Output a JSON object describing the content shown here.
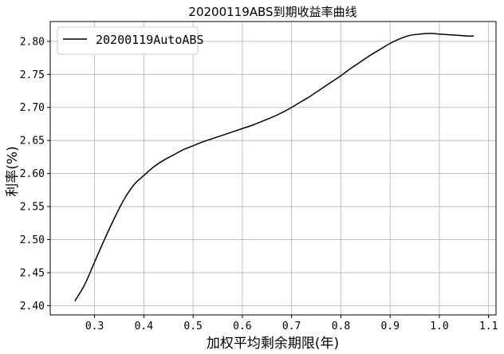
{
  "chart_data": {
    "type": "line",
    "title": "20200119ABS到期收益率曲线",
    "xlabel": "加权平均剩余期限(年)",
    "ylabel": "利率(%)",
    "xlim": [
      0.21,
      1.115
    ],
    "ylim": [
      2.386,
      2.83
    ],
    "xticks": [
      0.3,
      0.4,
      0.5,
      0.6,
      0.7,
      0.8,
      0.9,
      1.0,
      1.1
    ],
    "yticks": [
      2.4,
      2.45,
      2.5,
      2.55,
      2.6,
      2.65,
      2.7,
      2.75,
      2.8
    ],
    "grid": true,
    "legend_position": "top-left",
    "series": [
      {
        "name": "20200119AutoABS",
        "color": "#000000",
        "x": [
          0.26,
          0.28,
          0.3,
          0.32,
          0.34,
          0.36,
          0.38,
          0.4,
          0.42,
          0.44,
          0.46,
          0.48,
          0.5,
          0.52,
          0.54,
          0.56,
          0.58,
          0.6,
          0.62,
          0.64,
          0.66,
          0.68,
          0.7,
          0.72,
          0.74,
          0.76,
          0.78,
          0.8,
          0.82,
          0.84,
          0.86,
          0.88,
          0.9,
          0.92,
          0.94,
          0.96,
          0.98,
          1.0,
          1.02,
          1.04,
          1.06,
          1.07
        ],
        "y": [
          2.407,
          2.432,
          2.466,
          2.5,
          2.532,
          2.561,
          2.583,
          2.597,
          2.61,
          2.62,
          2.628,
          2.636,
          2.642,
          2.648,
          2.653,
          2.658,
          2.663,
          2.668,
          2.673,
          2.679,
          2.685,
          2.692,
          2.7,
          2.709,
          2.718,
          2.728,
          2.738,
          2.748,
          2.759,
          2.769,
          2.779,
          2.788,
          2.797,
          2.804,
          2.809,
          2.811,
          2.812,
          2.811,
          2.81,
          2.809,
          2.808,
          2.808
        ]
      }
    ]
  }
}
